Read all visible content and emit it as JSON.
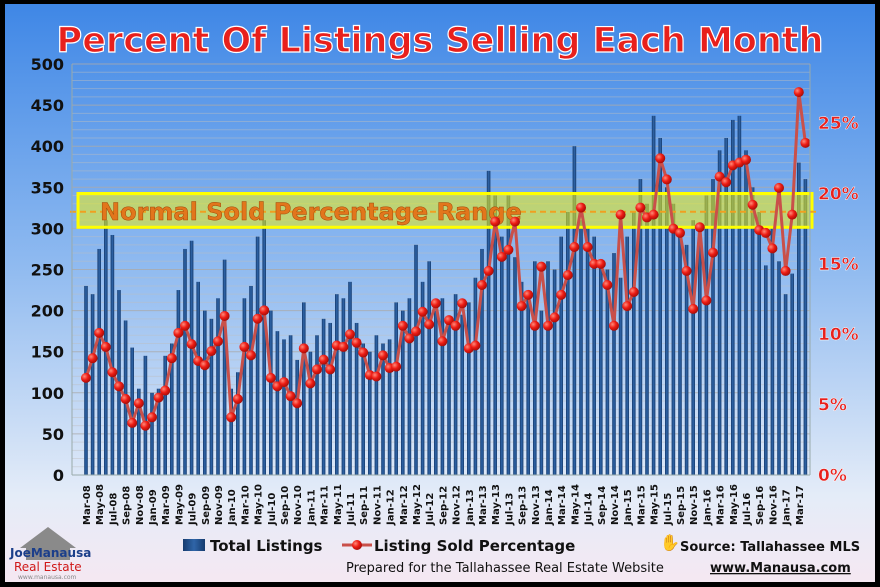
{
  "chart_data": {
    "type": "bar+line",
    "title": "Percent Of Listings Selling Each Month",
    "band_label": "Normal Sold Percentage Range",
    "band_range_pct": [
      17.6,
      20.0
    ],
    "band_center_pct": 18.7,
    "y_left": {
      "min": 0,
      "max": 500,
      "ticks": [
        0,
        50,
        100,
        150,
        200,
        250,
        300,
        350,
        400,
        450,
        500
      ]
    },
    "y_right": {
      "min": 0,
      "max": 29.2,
      "ticks": [
        0,
        5,
        10,
        15,
        20,
        25
      ],
      "tick_labels": [
        "0%",
        "5%",
        "10%",
        "15%",
        "20%",
        "25%"
      ]
    },
    "grid": true,
    "legend_position": "bottom",
    "x_labels_shown": [
      "Mar-08",
      "May-08",
      "Jul-08",
      "Sep-08",
      "Nov-08",
      "Jan-09",
      "Mar-09",
      "May-09",
      "Jul-09",
      "Sep-09",
      "Nov-09",
      "Jan-10",
      "Mar-10",
      "May-10",
      "Jul-10",
      "Sep-10",
      "Nov-10",
      "Jan-11",
      "Mar-11",
      "May-11",
      "Jul-11",
      "Sep-11",
      "Nov-11",
      "Jan-12",
      "Mar-12",
      "May-12",
      "Jul-12",
      "Sep-12",
      "Nov-12",
      "Jan-13",
      "Mar-13",
      "May-13",
      "Jul-13",
      "Sep-13",
      "Nov-13",
      "Jan-14",
      "Mar-14",
      "May-14",
      "Jul-14",
      "Sep-14",
      "Nov-14",
      "Jan-15",
      "Mar-15",
      "May-15",
      "Jul-15",
      "Sep-15",
      "Nov-15",
      "Jan-16",
      "Mar-16",
      "May-16",
      "Jul-16",
      "Sep-16",
      "Nov-16",
      "Jan-17",
      "Mar-17"
    ],
    "series": [
      {
        "name": "Total Listings",
        "axis": "left",
        "color": "#1f4e8c",
        "values": [
          230,
          220,
          275,
          310,
          292,
          225,
          188,
          155,
          105,
          145,
          100,
          105,
          145,
          160,
          225,
          275,
          285,
          235,
          200,
          190,
          215,
          262,
          105,
          125,
          215,
          230,
          290,
          310,
          200,
          175,
          165,
          170,
          140,
          210,
          150,
          170,
          190,
          185,
          220,
          215,
          235,
          185,
          160,
          150,
          170,
          160,
          165,
          210,
          200,
          215,
          280,
          235,
          260,
          200,
          215,
          190,
          220,
          195,
          210,
          240,
          275,
          370,
          340,
          290,
          340,
          265,
          235,
          220,
          260,
          200,
          260,
          250,
          290,
          320,
          400,
          310,
          300,
          290,
          260,
          250,
          270,
          240,
          290,
          320,
          360,
          330,
          437,
          410,
          350,
          330,
          300,
          280,
          310,
          290,
          340,
          360,
          395,
          410,
          432,
          437,
          395,
          350,
          320,
          255,
          300,
          260,
          220,
          245,
          380,
          360
        ]
      },
      {
        "name": "Listing Sold Percentage",
        "axis": "right",
        "color": "#e8201c",
        "values": [
          6.9,
          8.3,
          10.1,
          9.1,
          7.3,
          6.3,
          5.4,
          3.7,
          5.1,
          3.5,
          4.1,
          5.5,
          6.0,
          8.3,
          10.1,
          10.6,
          9.3,
          8.1,
          7.8,
          8.8,
          9.5,
          11.3,
          4.1,
          5.4,
          9.1,
          8.5,
          11.1,
          11.7,
          6.9,
          6.3,
          6.6,
          5.6,
          5.1,
          9.0,
          6.5,
          7.5,
          8.2,
          7.5,
          9.2,
          9.1,
          10.0,
          9.4,
          8.7,
          7.1,
          7.0,
          8.5,
          7.6,
          7.7,
          10.6,
          9.7,
          10.2,
          11.6,
          10.7,
          12.2,
          9.5,
          11.0,
          10.6,
          12.2,
          9.0,
          9.2,
          13.5,
          14.5,
          18.0,
          15.5,
          16.0,
          18.0,
          12.0,
          12.8,
          10.6,
          14.8,
          10.6,
          11.2,
          12.8,
          14.2,
          16.2,
          19.0,
          16.2,
          15.0,
          15.0,
          13.5,
          10.6,
          18.5,
          12.0,
          13.0,
          19.0,
          18.3,
          18.5,
          22.5,
          21.0,
          17.5,
          17.2,
          14.5,
          11.8,
          17.6,
          12.4,
          15.8,
          21.2,
          20.8,
          22.0,
          22.2,
          22.4,
          19.2,
          17.4,
          17.2,
          16.1,
          20.4,
          14.5,
          18.5,
          27.2,
          23.6
        ]
      }
    ]
  },
  "legend": {
    "bars_label": "Total Listings",
    "line_label": "Listing Sold Percentage"
  },
  "footer": {
    "source": "Source: Tallahassee MLS",
    "prepared": "Prepared for the Tallahassee Real Estate Website",
    "website": "www.Manausa.com"
  },
  "logo": {
    "line1": "JoeManausa",
    "line2": "Real Estate",
    "line3": "www.manausa.com"
  },
  "colors": {
    "bar": "#1f4e8c",
    "line": "#c9504a",
    "marker": "#e8201c",
    "band": "#f2f20a",
    "band_text": "#e2761c",
    "title": "#e8201c",
    "right_axis": "#e8201c"
  }
}
